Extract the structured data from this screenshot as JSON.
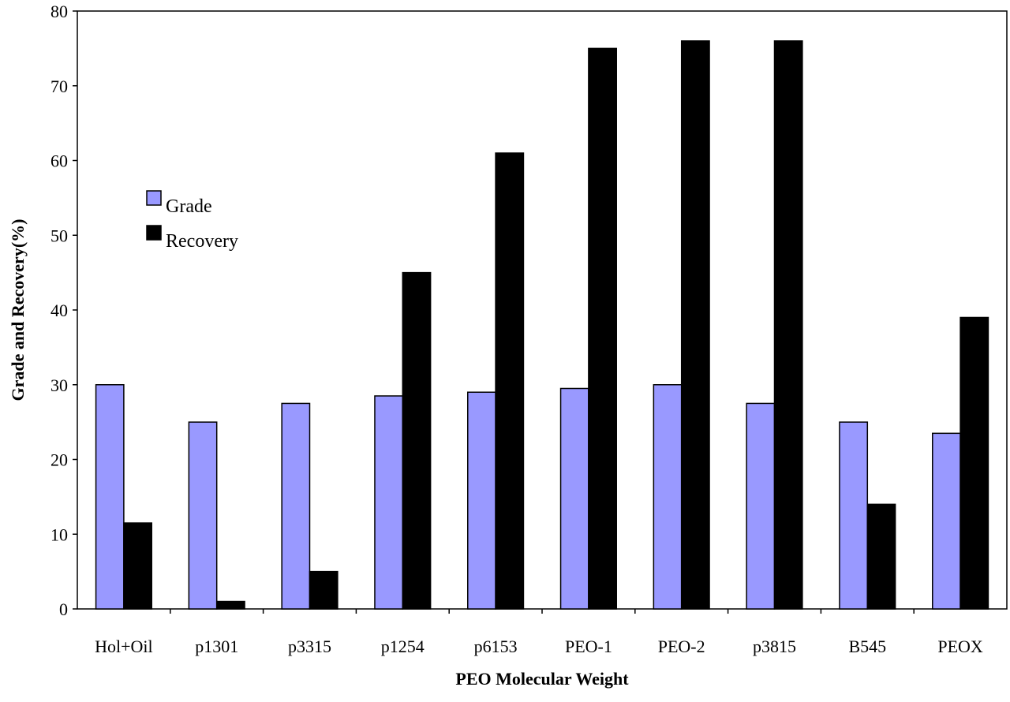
{
  "chart_data": {
    "type": "bar",
    "title": "",
    "xlabel": "PEO Molecular Weight",
    "ylabel": "Grade and Recovery(%)",
    "ylim": [
      0,
      80
    ],
    "yticks": [
      0,
      10,
      20,
      30,
      40,
      50,
      60,
      70,
      80
    ],
    "categories": [
      "Hol+Oil",
      "p1301",
      "p3315",
      "p1254",
      "p6153",
      "PEO-1",
      "PEO-2",
      "p3815",
      "B545",
      "PEOX"
    ],
    "series": [
      {
        "name": "Grade",
        "color": "#9999ff",
        "values": [
          30,
          25,
          27.5,
          28.5,
          29,
          29.5,
          30,
          27.5,
          25,
          23.5
        ]
      },
      {
        "name": "Recovery",
        "color": "#000000",
        "values": [
          11.5,
          1,
          5,
          45,
          61,
          75,
          76,
          76,
          14,
          39
        ]
      }
    ],
    "grid": false,
    "legend_position": "upper-left inside"
  }
}
